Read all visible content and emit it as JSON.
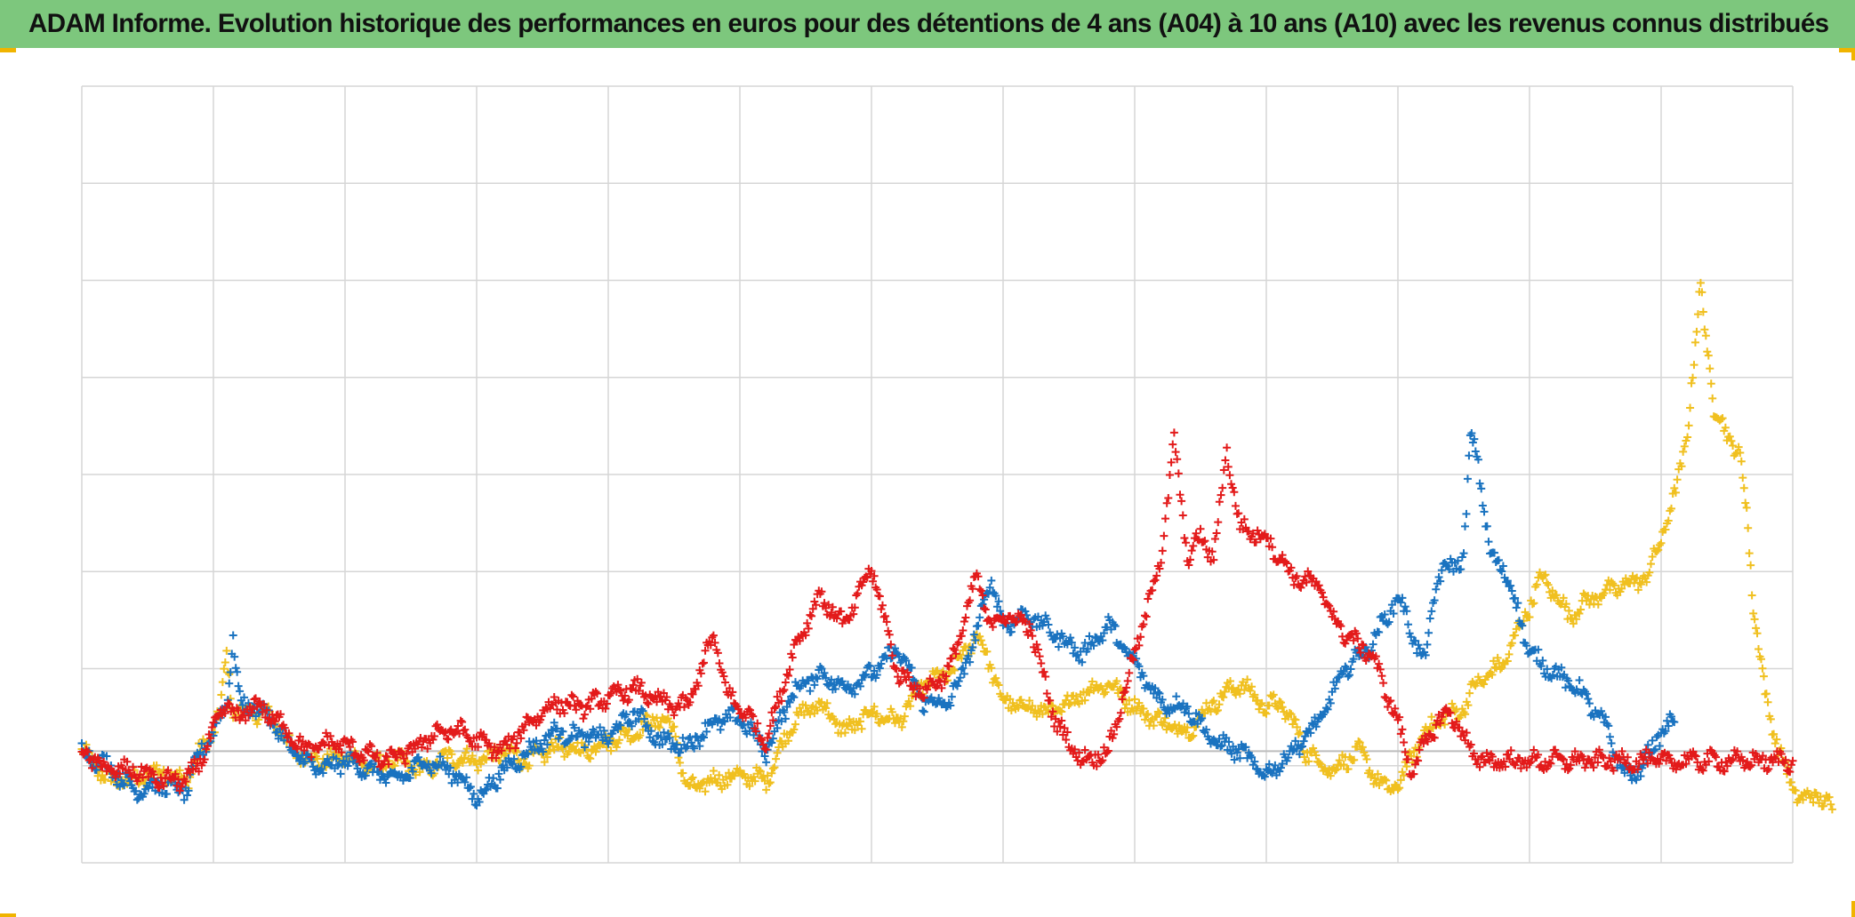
{
  "title": "ADAM Informe. Evolution historique des performances en euros pour des détentions de 4 ans (A04) à 10 ans (A10) avec les revenus connus distribués",
  "chart_data": {
    "type": "scatter",
    "title": "ADAM Informe. Evolution historique des performances en euros pour des détentions de 4 ans (A04) à 10 ans (A10) avec les revenus connus distribués",
    "xlabel": "",
    "ylabel": "",
    "marker": "plus",
    "grid": true,
    "legend": "none",
    "axis_labels_visible": false,
    "xlim": [
      0,
      13
    ],
    "ylim": [
      -1.15,
      6.85
    ],
    "series": [
      {
        "color": "#f0c020",
        "points": [
          [
            0.0,
            0.0
          ],
          [
            0.2,
            -0.3
          ],
          [
            0.4,
            -0.3
          ],
          [
            0.6,
            -0.2
          ],
          [
            0.8,
            -0.3
          ],
          [
            0.9,
            0.0
          ],
          [
            1.0,
            0.2
          ],
          [
            1.05,
            0.4
          ],
          [
            1.1,
            1.0
          ],
          [
            1.15,
            0.4
          ],
          [
            1.3,
            0.4
          ],
          [
            1.45,
            0.35
          ],
          [
            1.6,
            0.0
          ],
          [
            1.8,
            -0.1
          ],
          [
            2.0,
            -0.05
          ],
          [
            2.2,
            -0.15
          ],
          [
            2.4,
            -0.1
          ],
          [
            2.6,
            -0.2
          ],
          [
            2.8,
            -0.05
          ],
          [
            3.0,
            -0.1
          ],
          [
            3.2,
            0.0
          ],
          [
            3.4,
            -0.1
          ],
          [
            3.6,
            0.05
          ],
          [
            3.8,
            0.0
          ],
          [
            4.0,
            0.1
          ],
          [
            4.2,
            0.2
          ],
          [
            4.4,
            0.35
          ],
          [
            4.5,
            0.2
          ],
          [
            4.6,
            -0.4
          ],
          [
            4.8,
            -0.3
          ],
          [
            5.0,
            -0.25
          ],
          [
            5.2,
            -0.3
          ],
          [
            5.4,
            0.3
          ],
          [
            5.6,
            0.5
          ],
          [
            5.8,
            0.2
          ],
          [
            6.0,
            0.4
          ],
          [
            6.2,
            0.3
          ],
          [
            6.4,
            0.7
          ],
          [
            6.6,
            0.8
          ],
          [
            6.8,
            1.2
          ],
          [
            6.9,
            0.9
          ],
          [
            7.0,
            0.5
          ],
          [
            7.2,
            0.45
          ],
          [
            7.4,
            0.4
          ],
          [
            7.6,
            0.6
          ],
          [
            7.8,
            0.7
          ],
          [
            8.0,
            0.45
          ],
          [
            8.2,
            0.3
          ],
          [
            8.4,
            0.2
          ],
          [
            8.6,
            0.5
          ],
          [
            8.8,
            0.7
          ],
          [
            9.0,
            0.45
          ],
          [
            9.1,
            0.5
          ],
          [
            9.2,
            0.3
          ],
          [
            9.3,
            0.0
          ],
          [
            9.5,
            -0.2
          ],
          [
            9.7,
            0.0
          ],
          [
            9.9,
            -0.4
          ],
          [
            10.0,
            -0.35
          ],
          [
            10.2,
            0.2
          ],
          [
            10.3,
            0.3
          ],
          [
            10.5,
            0.45
          ],
          [
            10.6,
            0.7
          ],
          [
            10.8,
            0.9
          ],
          [
            11.0,
            1.5
          ],
          [
            11.1,
            1.8
          ],
          [
            11.3,
            1.4
          ],
          [
            11.5,
            1.6
          ],
          [
            11.7,
            1.7
          ],
          [
            11.9,
            1.8
          ],
          [
            12.0,
            2.2
          ],
          [
            12.1,
            2.6
          ],
          [
            12.2,
            3.3
          ],
          [
            12.25,
            4.0
          ],
          [
            12.3,
            4.8
          ],
          [
            12.35,
            4.2
          ],
          [
            12.4,
            3.5
          ],
          [
            12.5,
            3.3
          ],
          [
            12.6,
            3.0
          ],
          [
            12.65,
            2.5
          ],
          [
            12.7,
            1.5
          ],
          [
            12.75,
            1.0
          ],
          [
            12.8,
            0.5
          ],
          [
            12.9,
            0.0
          ],
          [
            13.0,
            -0.4
          ],
          [
            13.1,
            -0.5
          ],
          [
            13.2,
            -0.45
          ],
          [
            13.3,
            -0.6
          ]
        ]
      },
      {
        "color": "#1a73c0",
        "points": [
          [
            0.0,
            0.0
          ],
          [
            0.2,
            -0.15
          ],
          [
            0.4,
            -0.4
          ],
          [
            0.6,
            -0.35
          ],
          [
            0.8,
            -0.4
          ],
          [
            0.9,
            0.0
          ],
          [
            1.0,
            0.2
          ],
          [
            1.1,
            0.5
          ],
          [
            1.15,
            1.15
          ],
          [
            1.2,
            0.5
          ],
          [
            1.4,
            0.4
          ],
          [
            1.6,
            0.0
          ],
          [
            1.8,
            -0.2
          ],
          [
            2.0,
            -0.1
          ],
          [
            2.2,
            -0.2
          ],
          [
            2.4,
            -0.3
          ],
          [
            2.6,
            -0.1
          ],
          [
            2.8,
            -0.2
          ],
          [
            2.9,
            -0.3
          ],
          [
            3.0,
            -0.5
          ],
          [
            3.2,
            -0.2
          ],
          [
            3.4,
            0.0
          ],
          [
            3.6,
            0.2
          ],
          [
            3.8,
            0.15
          ],
          [
            4.0,
            0.15
          ],
          [
            4.2,
            0.4
          ],
          [
            4.4,
            0.1
          ],
          [
            4.6,
            0.05
          ],
          [
            4.8,
            0.3
          ],
          [
            5.0,
            0.35
          ],
          [
            5.2,
            0.0
          ],
          [
            5.4,
            0.6
          ],
          [
            5.6,
            0.8
          ],
          [
            5.8,
            0.65
          ],
          [
            6.0,
            0.8
          ],
          [
            6.2,
            1.05
          ],
          [
            6.4,
            0.5
          ],
          [
            6.6,
            0.5
          ],
          [
            6.8,
            1.2
          ],
          [
            6.9,
            1.8
          ],
          [
            7.0,
            1.3
          ],
          [
            7.2,
            1.4
          ],
          [
            7.4,
            1.2
          ],
          [
            7.6,
            1.0
          ],
          [
            7.8,
            1.3
          ],
          [
            8.0,
            0.9
          ],
          [
            8.2,
            0.5
          ],
          [
            8.4,
            0.45
          ],
          [
            8.6,
            0.1
          ],
          [
            8.8,
            0.0
          ],
          [
            9.0,
            -0.25
          ],
          [
            9.2,
            0.0
          ],
          [
            9.4,
            0.3
          ],
          [
            9.6,
            0.85
          ],
          [
            9.8,
            1.1
          ],
          [
            10.0,
            1.6
          ],
          [
            10.2,
            0.9
          ],
          [
            10.3,
            1.8
          ],
          [
            10.5,
            2.0
          ],
          [
            10.55,
            3.2
          ],
          [
            10.6,
            3.1
          ],
          [
            10.7,
            2.0
          ],
          [
            10.8,
            1.9
          ],
          [
            10.9,
            1.5
          ],
          [
            11.0,
            1.0
          ],
          [
            11.2,
            0.8
          ],
          [
            11.4,
            0.6
          ],
          [
            11.6,
            0.2
          ],
          [
            11.7,
            -0.2
          ],
          [
            11.8,
            -0.25
          ],
          [
            11.9,
            -0.05
          ],
          [
            12.0,
            0.2
          ],
          [
            12.1,
            0.3
          ]
        ]
      },
      {
        "color": "#e31b1b",
        "points": [
          [
            0.0,
            0.0
          ],
          [
            0.2,
            -0.2
          ],
          [
            0.4,
            -0.2
          ],
          [
            0.6,
            -0.3
          ],
          [
            0.8,
            -0.3
          ],
          [
            0.9,
            -0.1
          ],
          [
            1.0,
            0.2
          ],
          [
            1.1,
            0.5
          ],
          [
            1.2,
            0.3
          ],
          [
            1.3,
            0.5
          ],
          [
            1.5,
            0.3
          ],
          [
            1.7,
            0.0
          ],
          [
            1.9,
            0.1
          ],
          [
            2.1,
            0.0
          ],
          [
            2.3,
            -0.1
          ],
          [
            2.5,
            0.0
          ],
          [
            2.7,
            0.2
          ],
          [
            2.9,
            0.2
          ],
          [
            3.0,
            0.1
          ],
          [
            3.2,
            0.0
          ],
          [
            3.4,
            0.3
          ],
          [
            3.6,
            0.5
          ],
          [
            3.8,
            0.45
          ],
          [
            4.0,
            0.55
          ],
          [
            4.2,
            0.65
          ],
          [
            4.4,
            0.5
          ],
          [
            4.6,
            0.45
          ],
          [
            4.8,
            1.2
          ],
          [
            4.9,
            0.6
          ],
          [
            5.1,
            0.3
          ],
          [
            5.2,
            0.1
          ],
          [
            5.4,
            1.0
          ],
          [
            5.6,
            1.6
          ],
          [
            5.8,
            1.3
          ],
          [
            6.0,
            1.9
          ],
          [
            6.2,
            0.8
          ],
          [
            6.4,
            0.6
          ],
          [
            6.6,
            0.85
          ],
          [
            6.8,
            1.8
          ],
          [
            6.9,
            1.3
          ],
          [
            7.0,
            1.4
          ],
          [
            7.2,
            1.3
          ],
          [
            7.4,
            0.3
          ],
          [
            7.6,
            -0.1
          ],
          [
            7.8,
            0.0
          ],
          [
            8.0,
            1.0
          ],
          [
            8.2,
            2.0
          ],
          [
            8.3,
            3.2
          ],
          [
            8.4,
            2.0
          ],
          [
            8.5,
            2.2
          ],
          [
            8.6,
            2.0
          ],
          [
            8.7,
            3.1
          ],
          [
            8.8,
            2.3
          ],
          [
            9.0,
            2.2
          ],
          [
            9.2,
            1.8
          ],
          [
            9.4,
            1.7
          ],
          [
            9.5,
            1.4
          ],
          [
            9.6,
            1.2
          ],
          [
            9.8,
            1.0
          ],
          [
            10.0,
            0.3
          ],
          [
            10.1,
            -0.2
          ],
          [
            10.3,
            0.3
          ],
          [
            10.4,
            0.4
          ],
          [
            10.6,
            -0.1
          ],
          [
            13.0,
            -0.1
          ]
        ]
      }
    ]
  }
}
